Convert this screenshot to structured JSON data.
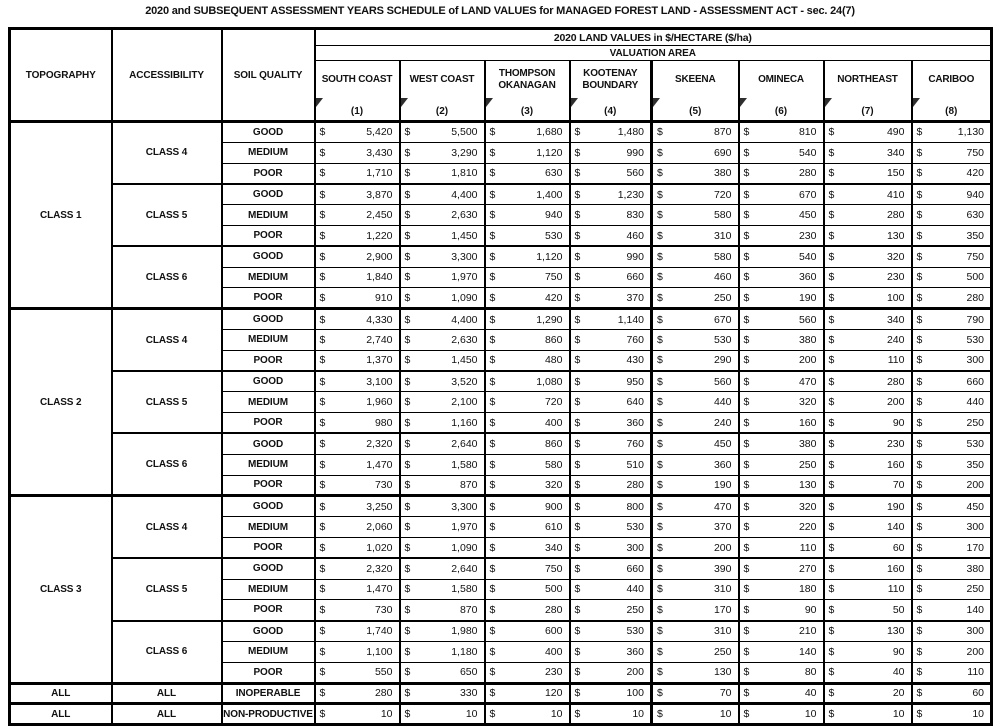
{
  "title": "2020 and SUBSEQUENT ASSESSMENT YEARS SCHEDULE of LAND VALUES for MANAGED FOREST LAND - ASSESSMENT ACT - sec. 24(7)",
  "table": {
    "col_headers": [
      "TOPOGRAPHY",
      "ACCESSIBILITY",
      "SOIL QUALITY"
    ],
    "values_header": "2020 LAND VALUES in $/HECTARE ($/ha)",
    "valuation_area_label": "VALUATION AREA",
    "currency": "$",
    "regions": [
      {
        "name": "SOUTH COAST",
        "num": "(1)"
      },
      {
        "name": "WEST COAST",
        "num": "(2)"
      },
      {
        "name": "THOMPSON OKANAGAN",
        "num": "(3)"
      },
      {
        "name": "KOOTENAY BOUNDARY",
        "num": "(4)"
      },
      {
        "name": "SKEENA",
        "num": "(5)"
      },
      {
        "name": "OMINECA",
        "num": "(6)"
      },
      {
        "name": "NORTHEAST",
        "num": "(7)"
      },
      {
        "name": "CARIBOO",
        "num": "(8)"
      }
    ],
    "groups": [
      {
        "topography": "CLASS 1",
        "access_groups": [
          {
            "accessibility": "CLASS 4",
            "rows": [
              {
                "soil": "GOOD",
                "values": [
                  "5,420",
                  "5,500",
                  "1,680",
                  "1,480",
                  "870",
                  "810",
                  "490",
                  "1,130"
                ]
              },
              {
                "soil": "MEDIUM",
                "values": [
                  "3,430",
                  "3,290",
                  "1,120",
                  "990",
                  "690",
                  "540",
                  "340",
                  "750"
                ]
              },
              {
                "soil": "POOR",
                "values": [
                  "1,710",
                  "1,810",
                  "630",
                  "560",
                  "380",
                  "280",
                  "150",
                  "420"
                ]
              }
            ]
          },
          {
            "accessibility": "CLASS 5",
            "rows": [
              {
                "soil": "GOOD",
                "values": [
                  "3,870",
                  "4,400",
                  "1,400",
                  "1,230",
                  "720",
                  "670",
                  "410",
                  "940"
                ]
              },
              {
                "soil": "MEDIUM",
                "values": [
                  "2,450",
                  "2,630",
                  "940",
                  "830",
                  "580",
                  "450",
                  "280",
                  "630"
                ]
              },
              {
                "soil": "POOR",
                "values": [
                  "1,220",
                  "1,450",
                  "530",
                  "460",
                  "310",
                  "230",
                  "130",
                  "350"
                ]
              }
            ]
          },
          {
            "accessibility": "CLASS 6",
            "rows": [
              {
                "soil": "GOOD",
                "values": [
                  "2,900",
                  "3,300",
                  "1,120",
                  "990",
                  "580",
                  "540",
                  "320",
                  "750"
                ]
              },
              {
                "soil": "MEDIUM",
                "values": [
                  "1,840",
                  "1,970",
                  "750",
                  "660",
                  "460",
                  "360",
                  "230",
                  "500"
                ]
              },
              {
                "soil": "POOR",
                "values": [
                  "910",
                  "1,090",
                  "420",
                  "370",
                  "250",
                  "190",
                  "100",
                  "280"
                ]
              }
            ]
          }
        ]
      },
      {
        "topography": "CLASS 2",
        "access_groups": [
          {
            "accessibility": "CLASS 4",
            "rows": [
              {
                "soil": "GOOD",
                "values": [
                  "4,330",
                  "4,400",
                  "1,290",
                  "1,140",
                  "670",
                  "560",
                  "340",
                  "790"
                ]
              },
              {
                "soil": "MEDIUM",
                "values": [
                  "2,740",
                  "2,630",
                  "860",
                  "760",
                  "530",
                  "380",
                  "240",
                  "530"
                ]
              },
              {
                "soil": "POOR",
                "values": [
                  "1,370",
                  "1,450",
                  "480",
                  "430",
                  "290",
                  "200",
                  "110",
                  "300"
                ]
              }
            ]
          },
          {
            "accessibility": "CLASS 5",
            "rows": [
              {
                "soil": "GOOD",
                "values": [
                  "3,100",
                  "3,520",
                  "1,080",
                  "950",
                  "560",
                  "470",
                  "280",
                  "660"
                ]
              },
              {
                "soil": "MEDIUM",
                "values": [
                  "1,960",
                  "2,100",
                  "720",
                  "640",
                  "440",
                  "320",
                  "200",
                  "440"
                ]
              },
              {
                "soil": "POOR",
                "values": [
                  "980",
                  "1,160",
                  "400",
                  "360",
                  "240",
                  "160",
                  "90",
                  "250"
                ]
              }
            ]
          },
          {
            "accessibility": "CLASS 6",
            "rows": [
              {
                "soil": "GOOD",
                "values": [
                  "2,320",
                  "2,640",
                  "860",
                  "760",
                  "450",
                  "380",
                  "230",
                  "530"
                ]
              },
              {
                "soil": "MEDIUM",
                "values": [
                  "1,470",
                  "1,580",
                  "580",
                  "510",
                  "360",
                  "250",
                  "160",
                  "350"
                ]
              },
              {
                "soil": "POOR",
                "values": [
                  "730",
                  "870",
                  "320",
                  "280",
                  "190",
                  "130",
                  "70",
                  "200"
                ]
              }
            ]
          }
        ]
      },
      {
        "topography": "CLASS 3",
        "access_groups": [
          {
            "accessibility": "CLASS 4",
            "rows": [
              {
                "soil": "GOOD",
                "values": [
                  "3,250",
                  "3,300",
                  "900",
                  "800",
                  "470",
                  "320",
                  "190",
                  "450"
                ]
              },
              {
                "soil": "MEDIUM",
                "values": [
                  "2,060",
                  "1,970",
                  "610",
                  "530",
                  "370",
                  "220",
                  "140",
                  "300"
                ]
              },
              {
                "soil": "POOR",
                "values": [
                  "1,020",
                  "1,090",
                  "340",
                  "300",
                  "200",
                  "110",
                  "60",
                  "170"
                ]
              }
            ]
          },
          {
            "accessibility": "CLASS 5",
            "rows": [
              {
                "soil": "GOOD",
                "values": [
                  "2,320",
                  "2,640",
                  "750",
                  "660",
                  "390",
                  "270",
                  "160",
                  "380"
                ]
              },
              {
                "soil": "MEDIUM",
                "values": [
                  "1,470",
                  "1,580",
                  "500",
                  "440",
                  "310",
                  "180",
                  "110",
                  "250"
                ]
              },
              {
                "soil": "POOR",
                "values": [
                  "730",
                  "870",
                  "280",
                  "250",
                  "170",
                  "90",
                  "50",
                  "140"
                ]
              }
            ]
          },
          {
            "accessibility": "CLASS 6",
            "rows": [
              {
                "soil": "GOOD",
                "values": [
                  "1,740",
                  "1,980",
                  "600",
                  "530",
                  "310",
                  "210",
                  "130",
                  "300"
                ]
              },
              {
                "soil": "MEDIUM",
                "values": [
                  "1,100",
                  "1,180",
                  "400",
                  "360",
                  "250",
                  "140",
                  "90",
                  "200"
                ]
              },
              {
                "soil": "POOR",
                "values": [
                  "550",
                  "650",
                  "230",
                  "200",
                  "130",
                  "80",
                  "40",
                  "110"
                ]
              }
            ]
          }
        ]
      }
    ],
    "special_rows": [
      {
        "topography": "ALL",
        "accessibility": "ALL",
        "soil": "INOPERABLE",
        "values": [
          "280",
          "330",
          "120",
          "100",
          "70",
          "40",
          "20",
          "60"
        ]
      },
      {
        "topography": "ALL",
        "accessibility": "ALL",
        "soil": "NON-PRODUCTIVE",
        "values": [
          "10",
          "10",
          "10",
          "10",
          "10",
          "10",
          "10",
          "10"
        ]
      }
    ]
  }
}
